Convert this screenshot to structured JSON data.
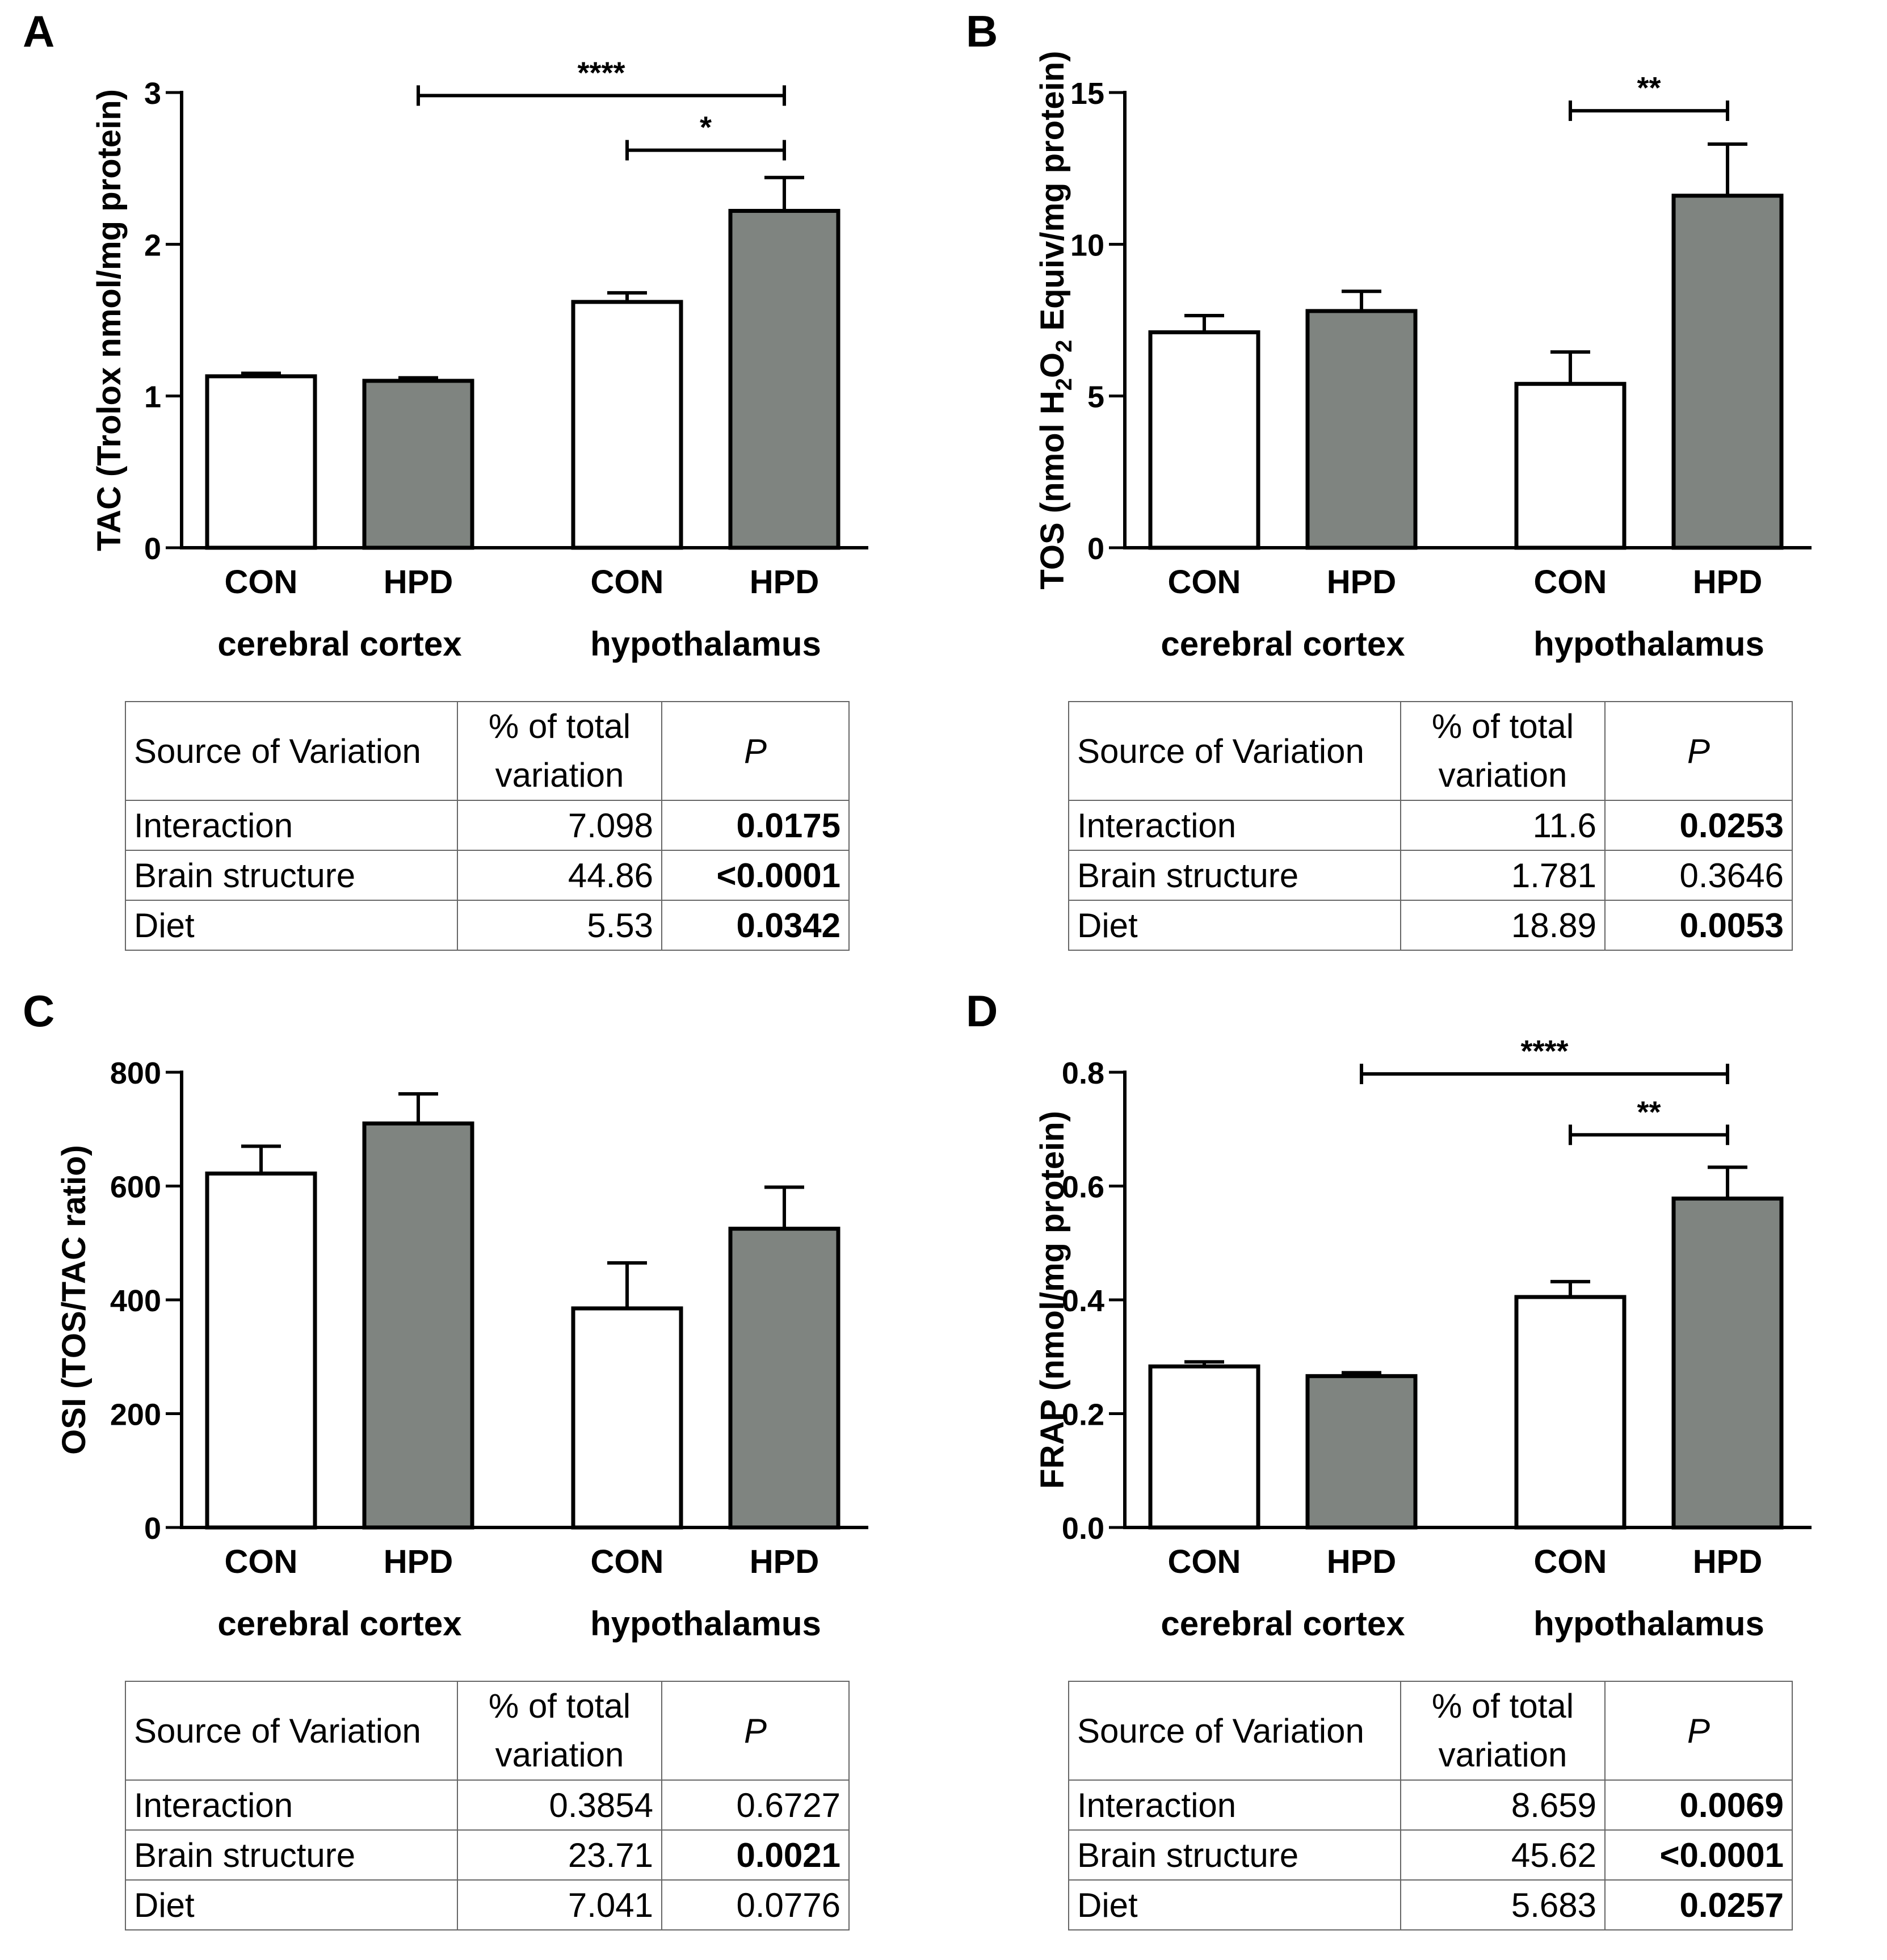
{
  "table_header": {
    "source": "Source of Variation",
    "pct_line1": "% of total",
    "pct_line2": "variation",
    "p": "P"
  },
  "chart_data": [
    {
      "panel": "A",
      "type": "bar",
      "ylabel": "TAC (Trolox nmol/mg protein)",
      "ylim": [
        0,
        3
      ],
      "yticks": [
        "0",
        "1",
        "2",
        "3"
      ],
      "categories": [
        "CON",
        "HPD",
        "CON",
        "HPD"
      ],
      "groups": [
        "cerebral cortex",
        "hypothalamus"
      ],
      "values": [
        1.13,
        1.1,
        1.62,
        2.22
      ],
      "errors": [
        0.02,
        0.02,
        0.06,
        0.22
      ],
      "fills": [
        "#ffffff",
        "#7f8480",
        "#ffffff",
        "#7f8480"
      ],
      "significance": [
        {
          "label": "****",
          "from": 1,
          "to": 3,
          "y": 2.98
        },
        {
          "label": "*",
          "from": 2,
          "to": 3,
          "y": 2.62
        }
      ],
      "table": [
        {
          "source": "Interaction",
          "pct": "7.098",
          "p": "0.0175",
          "bold": true
        },
        {
          "source": "Brain structure",
          "pct": "44.86",
          "p": "<0.0001",
          "bold": true
        },
        {
          "source": "Diet",
          "pct": "5.53",
          "p": "0.0342",
          "bold": true
        }
      ]
    },
    {
      "panel": "B",
      "type": "bar",
      "ylabel": "TOS (nmol H2O2 Equiv/mg protein)",
      "ylabel_parts": [
        "TOS (nmol H",
        "2",
        "O",
        "2",
        " Equiv/mg protein)"
      ],
      "ylim": [
        0,
        15
      ],
      "yticks": [
        "0",
        "5",
        "10",
        "15"
      ],
      "categories": [
        "CON",
        "HPD",
        "CON",
        "HPD"
      ],
      "groups": [
        "cerebral cortex",
        "hypothalamus"
      ],
      "values": [
        7.1,
        7.8,
        5.4,
        11.6
      ],
      "errors": [
        0.55,
        0.65,
        1.05,
        1.7
      ],
      "fills": [
        "#ffffff",
        "#7f8480",
        "#ffffff",
        "#7f8480"
      ],
      "significance": [
        {
          "label": "**",
          "from": 2,
          "to": 3,
          "y": 14.4
        }
      ],
      "table": [
        {
          "source": "Interaction",
          "pct": "11.6",
          "p": "0.0253",
          "bold": true
        },
        {
          "source": "Brain structure",
          "pct": "1.781",
          "p": "0.3646",
          "bold": false
        },
        {
          "source": "Diet",
          "pct": "18.89",
          "p": "0.0053",
          "bold": true
        }
      ]
    },
    {
      "panel": "C",
      "type": "bar",
      "ylabel": "OSI (TOS/TAC ratio)",
      "ylim": [
        0,
        800
      ],
      "yticks": [
        "0",
        "200",
        "400",
        "600",
        "800"
      ],
      "categories": [
        "CON",
        "HPD",
        "CON",
        "HPD"
      ],
      "groups": [
        "cerebral cortex",
        "hypothalamus"
      ],
      "values": [
        622,
        710,
        385,
        525
      ],
      "errors": [
        48,
        52,
        80,
        73
      ],
      "fills": [
        "#ffffff",
        "#7f8480",
        "#ffffff",
        "#7f8480"
      ],
      "significance": [],
      "table": [
        {
          "source": "Interaction",
          "pct": "0.3854",
          "p": "0.6727",
          "bold": false
        },
        {
          "source": "Brain structure",
          "pct": "23.71",
          "p": "0.0021",
          "bold": true
        },
        {
          "source": "Diet",
          "pct": "7.041",
          "p": "0.0776",
          "bold": false
        }
      ]
    },
    {
      "panel": "D",
      "type": "bar",
      "ylabel": "FRAP (nmol/mg protein)",
      "ylim": [
        0,
        0.8
      ],
      "yticks": [
        "0.0",
        "0.2",
        "0.4",
        "0.6",
        "0.8"
      ],
      "categories": [
        "CON",
        "HPD",
        "CON",
        "HPD"
      ],
      "groups": [
        "cerebral cortex",
        "hypothalamus"
      ],
      "values": [
        0.283,
        0.266,
        0.405,
        0.578
      ],
      "errors": [
        0.008,
        0.006,
        0.027,
        0.055
      ],
      "fills": [
        "#ffffff",
        "#7f8480",
        "#ffffff",
        "#7f8480"
      ],
      "significance": [
        {
          "label": "****",
          "from": 1,
          "to": 3,
          "y": 0.797
        },
        {
          "label": "**",
          "from": 2,
          "to": 3,
          "y": 0.69
        }
      ],
      "table": [
        {
          "source": "Interaction",
          "pct": "8.659",
          "p": "0.0069",
          "bold": true
        },
        {
          "source": "Brain structure",
          "pct": "45.62",
          "p": "<0.0001",
          "bold": true
        },
        {
          "source": "Diet",
          "pct": "5.683",
          "p": "0.0257",
          "bold": true
        }
      ]
    }
  ]
}
